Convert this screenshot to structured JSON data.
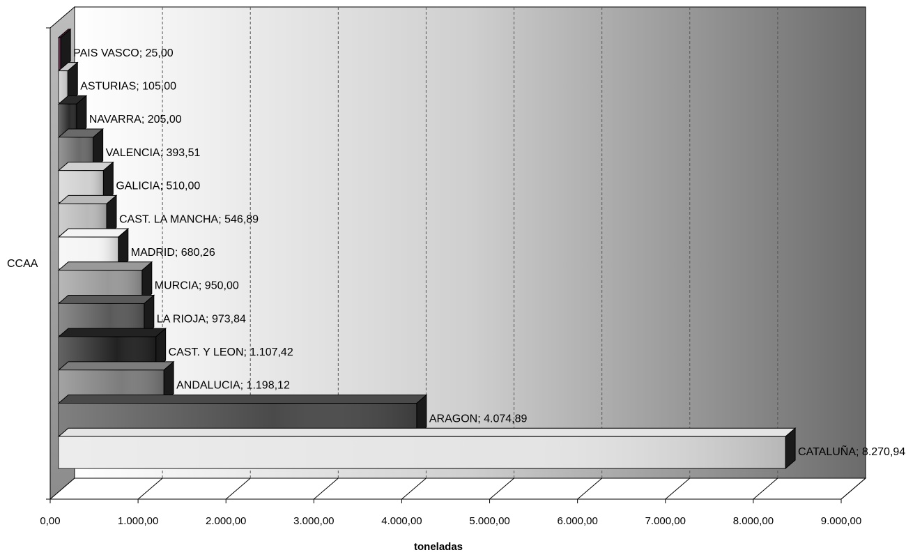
{
  "chart_data": {
    "type": "bar",
    "orientation": "horizontal",
    "style": "3d",
    "title": "",
    "xlabel": "toneladas",
    "ylabel": "CCAA",
    "xlim": [
      0,
      9000
    ],
    "x_ticks": [
      0,
      1000,
      2000,
      3000,
      4000,
      5000,
      6000,
      7000,
      8000,
      9000
    ],
    "x_tick_labels": [
      "0,00",
      "1.000,00",
      "2.000,00",
      "3.000,00",
      "4.000,00",
      "5.000,00",
      "6.000,00",
      "7.000,00",
      "8.000,00",
      "9.000,00"
    ],
    "grid": "vertical dashed",
    "legend": "none",
    "categories": [
      "CATALUÑA",
      "ARAGON",
      "ANDALUCIA",
      "CAST. Y LEON",
      "LA RIOJA",
      "MURCIA",
      "MADRID",
      "CAST. LA MANCHA",
      "GALICIA",
      "VALENCIA",
      "NAVARRA",
      "ASTURIAS",
      "PAIS VASCO"
    ],
    "values": [
      8270.94,
      4074.89,
      1198.12,
      1107.42,
      973.84,
      950.0,
      680.26,
      546.89,
      510.0,
      393.51,
      205.0,
      105.0,
      25.0
    ],
    "data_labels": [
      "CATALUÑA; 8.270,94",
      "ARAGON; 4.074,89",
      "ANDALUCIA; 1.198,12",
      "CAST. Y LEON; 1.107,42",
      "LA RIOJA; 973,84",
      "MURCIA; 950,00",
      "MADRID; 680,26",
      "CAST. LA MANCHA; 546,89",
      "GALICIA; 510,00",
      "VALENCIA; 393,51",
      "NAVARRA; 205,00",
      "ASTURIAS; 105,00",
      "PAIS VASCO; 25,00"
    ],
    "colors": {
      "wall_dark": "#6b6b6b",
      "wall_light": "#ffffff",
      "side_wall": "#a9a9a9",
      "floor": "#ffffff",
      "bar_outline": "#000000",
      "bar_shades": [
        "#e4e4e4",
        "#4a4a4a",
        "#7c7c7c",
        "#222222",
        "#5a5a5a",
        "#999999",
        "#f4f4f4",
        "#b9b9b9",
        "#d0d0d0",
        "#6a6a6a",
        "#2a2a2a",
        "#c8c8c8",
        "#5b1f3d"
      ]
    }
  }
}
